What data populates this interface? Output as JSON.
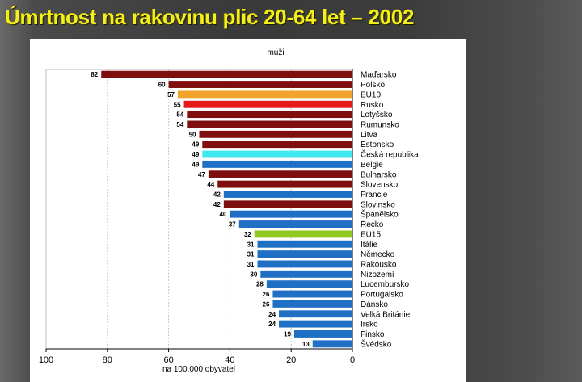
{
  "title": "Úmrtnost na rakovinu plic 20-64 let – 2002",
  "chart_data": {
    "type": "bar",
    "orientation": "horizontal",
    "subtitle": "muži",
    "xlabel": "na 100,000 obyvatel",
    "xlim": [
      0,
      100
    ],
    "x_reversed": true,
    "ticks": [
      100,
      80,
      60,
      40,
      20,
      0
    ],
    "grid": true,
    "categories": [
      "Maďarsko",
      "Polsko",
      "EU10",
      "Rusko",
      "Lotyšsko",
      "Rumunsko",
      "Litva",
      "Estonsko",
      "Česká republika",
      "Belgie",
      "Bulharsko",
      "Slovensko",
      "Francie",
      "Slovinsko",
      "Španělsko",
      "Řecko",
      "EU15",
      "Itálie",
      "Německo",
      "Rakousko",
      "Nizozemí",
      "Lucembursko",
      "Portugalsko",
      "Dánsko",
      "Velká Británie",
      "Irsko",
      "Finsko",
      "Švédsko"
    ],
    "values": [
      82,
      60,
      57,
      55,
      54,
      54,
      50,
      49,
      49,
      49,
      47,
      44,
      42,
      42,
      40,
      37,
      32,
      31,
      31,
      31,
      30,
      28,
      26,
      26,
      24,
      24,
      19,
      13
    ],
    "colors": [
      "#7f0f0f",
      "#7f0f0f",
      "#f2a42a",
      "#e41a1a",
      "#7f0f0f",
      "#7f0f0f",
      "#7f0f0f",
      "#7f0f0f",
      "#40e8f0",
      "#1f6fc4",
      "#7f0f0f",
      "#7f0f0f",
      "#1f6fc4",
      "#7f0f0f",
      "#1f6fc4",
      "#1f6fc4",
      "#8fc81f",
      "#1f6fc4",
      "#1f6fc4",
      "#1f6fc4",
      "#1f6fc4",
      "#1f6fc4",
      "#1f6fc4",
      "#1f6fc4",
      "#1f6fc4",
      "#1f6fc4",
      "#1f6fc4",
      "#1f6fc4"
    ]
  }
}
